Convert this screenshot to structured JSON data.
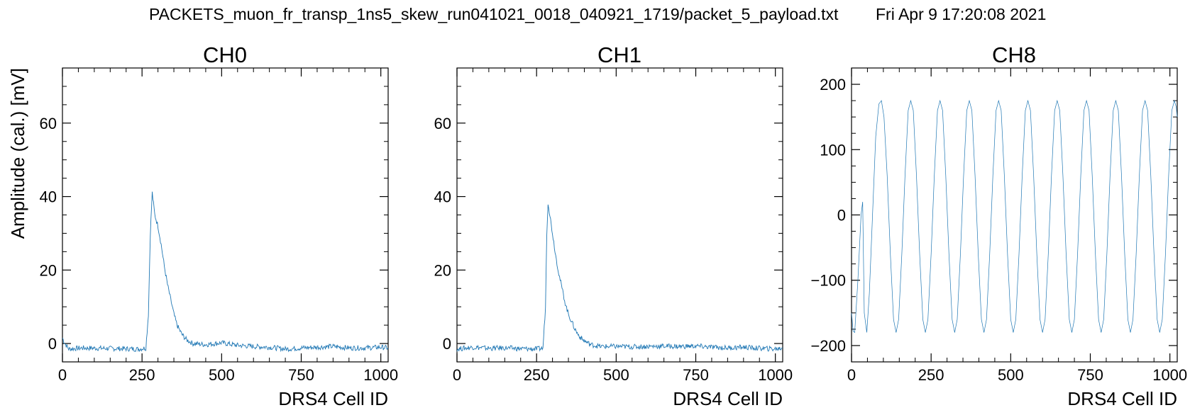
{
  "figure": {
    "title": "PACKETS_muon_fr_transp_1ns5_skew_run041021_0018_040921_1719/packet_5_payload.txt",
    "timestamp": "Fri Apr  9 17:20:08 2021",
    "line_color": "#1f77b4"
  },
  "chart_data": [
    {
      "type": "line",
      "title": "CH0",
      "xlabel": "DRS4 Cell ID",
      "ylabel": "Amplitude (cal.) [mV]",
      "xlim": [
        0,
        1023
      ],
      "ylim": [
        -5,
        75
      ],
      "xticks": [
        0,
        250,
        500,
        750,
        1000
      ],
      "yticks": [
        0,
        20,
        40,
        60
      ],
      "tick_labels_x": [
        "0",
        "250",
        "500",
        "750",
        "1000"
      ],
      "tick_labels_y": [
        "0",
        "20",
        "40",
        "60"
      ],
      "grid": false,
      "series": [
        {
          "points": [
            [
              0,
              1.5
            ],
            [
              8,
              0
            ],
            [
              20,
              -1.5
            ],
            [
              60,
              -1.2
            ],
            [
              120,
              -1.3
            ],
            [
              180,
              -1.4
            ],
            [
              240,
              -1.5
            ],
            [
              262,
              -1.2
            ],
            [
              270,
              8
            ],
            [
              276,
              30
            ],
            [
              282,
              41
            ],
            [
              286,
              38
            ],
            [
              290,
              35
            ],
            [
              300,
              32
            ],
            [
              310,
              27
            ],
            [
              320,
              21
            ],
            [
              330,
              16
            ],
            [
              340,
              12
            ],
            [
              350,
              8
            ],
            [
              360,
              5
            ],
            [
              375,
              2.5
            ],
            [
              390,
              1
            ],
            [
              410,
              0
            ],
            [
              450,
              -0.3
            ],
            [
              500,
              0.2
            ],
            [
              550,
              -0.5
            ],
            [
              600,
              -0.8
            ],
            [
              650,
              -1
            ],
            [
              700,
              -1.5
            ],
            [
              750,
              -1.2
            ],
            [
              800,
              -1
            ],
            [
              850,
              -0.8
            ],
            [
              900,
              -1.2
            ],
            [
              950,
              -1.2
            ],
            [
              1000,
              -1
            ],
            [
              1023,
              -1.2
            ]
          ]
        }
      ]
    },
    {
      "type": "line",
      "title": "CH1",
      "xlabel": "DRS4 Cell ID",
      "ylabel": "",
      "xlim": [
        0,
        1023
      ],
      "ylim": [
        -5,
        75
      ],
      "xticks": [
        0,
        250,
        500,
        750,
        1000
      ],
      "yticks": [
        0,
        20,
        40,
        60
      ],
      "tick_labels_x": [
        "0",
        "250",
        "500",
        "750",
        "1000"
      ],
      "tick_labels_y": [
        "0",
        "20",
        "40",
        "60"
      ],
      "grid": false,
      "series": [
        {
          "points": [
            [
              0,
              -1.5
            ],
            [
              50,
              -1
            ],
            [
              100,
              -1.3
            ],
            [
              150,
              -1.2
            ],
            [
              200,
              -1.4
            ],
            [
              250,
              -1.5
            ],
            [
              270,
              -1.3
            ],
            [
              278,
              10
            ],
            [
              282,
              30
            ],
            [
              286,
              38.5
            ],
            [
              290,
              36
            ],
            [
              300,
              30
            ],
            [
              310,
              24
            ],
            [
              320,
              19
            ],
            [
              330,
              15
            ],
            [
              340,
              11
            ],
            [
              350,
              8
            ],
            [
              360,
              6
            ],
            [
              370,
              4
            ],
            [
              380,
              2.5
            ],
            [
              395,
              1
            ],
            [
              420,
              -0.3
            ],
            [
              450,
              -0.8
            ],
            [
              500,
              -0.8
            ],
            [
              550,
              -0.9
            ],
            [
              600,
              -0.8
            ],
            [
              650,
              -0.7
            ],
            [
              700,
              -0.8
            ],
            [
              750,
              -0.7
            ],
            [
              800,
              -1
            ],
            [
              850,
              -1.2
            ],
            [
              900,
              -1
            ],
            [
              950,
              -1.3
            ],
            [
              1000,
              -1.5
            ],
            [
              1023,
              -1.2
            ]
          ]
        }
      ]
    },
    {
      "type": "line",
      "title": "CH8",
      "xlabel": "DRS4 Cell ID",
      "ylabel": "",
      "xlim": [
        0,
        1023
      ],
      "ylim": [
        -225,
        225
      ],
      "xticks": [
        0,
        250,
        500,
        750,
        1000
      ],
      "yticks": [
        -200,
        -100,
        0,
        100,
        200
      ],
      "tick_labels_x": [
        "0",
        "250",
        "500",
        "750",
        "1000"
      ],
      "tick_labels_y": [
        "−200",
        "−100",
        "0",
        "100",
        "200"
      ],
      "grid": false,
      "series": [
        {
          "points": [
            [
              0,
              -150
            ],
            [
              5,
              -178
            ],
            [
              10,
              -180
            ],
            [
              20,
              -100
            ],
            [
              30,
              0
            ],
            [
              35,
              20
            ],
            [
              40,
              -150
            ],
            [
              48,
              -180
            ],
            [
              56,
              -120
            ],
            [
              66,
              0
            ],
            [
              76,
              120
            ],
            [
              86,
              170
            ],
            [
              94,
              175
            ],
            [
              102,
              150
            ],
            [
              112,
              60
            ],
            [
              122,
              -60
            ],
            [
              132,
              -160
            ],
            [
              140,
              -180
            ],
            [
              148,
              -160
            ],
            [
              158,
              -60
            ],
            [
              168,
              60
            ],
            [
              178,
              160
            ],
            [
              186,
              175
            ],
            [
              194,
              160
            ],
            [
              204,
              60
            ],
            [
              214,
              -60
            ],
            [
              224,
              -160
            ],
            [
              232,
              -180
            ],
            [
              240,
              -160
            ],
            [
              250,
              -60
            ],
            [
              260,
              60
            ],
            [
              270,
              160
            ],
            [
              278,
              175
            ],
            [
              286,
              160
            ],
            [
              296,
              60
            ],
            [
              306,
              -60
            ],
            [
              316,
              -160
            ],
            [
              324,
              -180
            ],
            [
              332,
              -160
            ],
            [
              342,
              -60
            ],
            [
              352,
              60
            ],
            [
              362,
              160
            ],
            [
              370,
              175
            ],
            [
              378,
              160
            ],
            [
              388,
              60
            ],
            [
              398,
              -60
            ],
            [
              408,
              -160
            ],
            [
              416,
              -180
            ],
            [
              424,
              -160
            ],
            [
              434,
              -60
            ],
            [
              444,
              60
            ],
            [
              454,
              160
            ],
            [
              462,
              175
            ],
            [
              470,
              160
            ],
            [
              480,
              60
            ],
            [
              490,
              -60
            ],
            [
              500,
              -160
            ],
            [
              508,
              -180
            ],
            [
              516,
              -160
            ],
            [
              526,
              -60
            ],
            [
              536,
              60
            ],
            [
              546,
              160
            ],
            [
              554,
              175
            ],
            [
              562,
              160
            ],
            [
              572,
              60
            ],
            [
              582,
              -60
            ],
            [
              592,
              -160
            ],
            [
              600,
              -180
            ],
            [
              608,
              -160
            ],
            [
              618,
              -60
            ],
            [
              628,
              60
            ],
            [
              638,
              160
            ],
            [
              646,
              175
            ],
            [
              654,
              160
            ],
            [
              664,
              60
            ],
            [
              674,
              -60
            ],
            [
              684,
              -160
            ],
            [
              692,
              -180
            ],
            [
              700,
              -160
            ],
            [
              710,
              -60
            ],
            [
              720,
              60
            ],
            [
              730,
              160
            ],
            [
              738,
              175
            ],
            [
              746,
              160
            ],
            [
              756,
              60
            ],
            [
              766,
              -60
            ],
            [
              776,
              -160
            ],
            [
              784,
              -180
            ],
            [
              792,
              -160
            ],
            [
              802,
              -60
            ],
            [
              812,
              60
            ],
            [
              822,
              160
            ],
            [
              830,
              175
            ],
            [
              838,
              160
            ],
            [
              848,
              60
            ],
            [
              858,
              -60
            ],
            [
              868,
              -160
            ],
            [
              876,
              -180
            ],
            [
              884,
              -160
            ],
            [
              894,
              -60
            ],
            [
              904,
              60
            ],
            [
              914,
              160
            ],
            [
              922,
              175
            ],
            [
              930,
              160
            ],
            [
              940,
              60
            ],
            [
              950,
              -60
            ],
            [
              960,
              -160
            ],
            [
              968,
              -180
            ],
            [
              976,
              -160
            ],
            [
              986,
              -60
            ],
            [
              996,
              60
            ],
            [
              1006,
              160
            ],
            [
              1014,
              175
            ],
            [
              1020,
              165
            ],
            [
              1023,
              150
            ]
          ]
        }
      ]
    }
  ]
}
